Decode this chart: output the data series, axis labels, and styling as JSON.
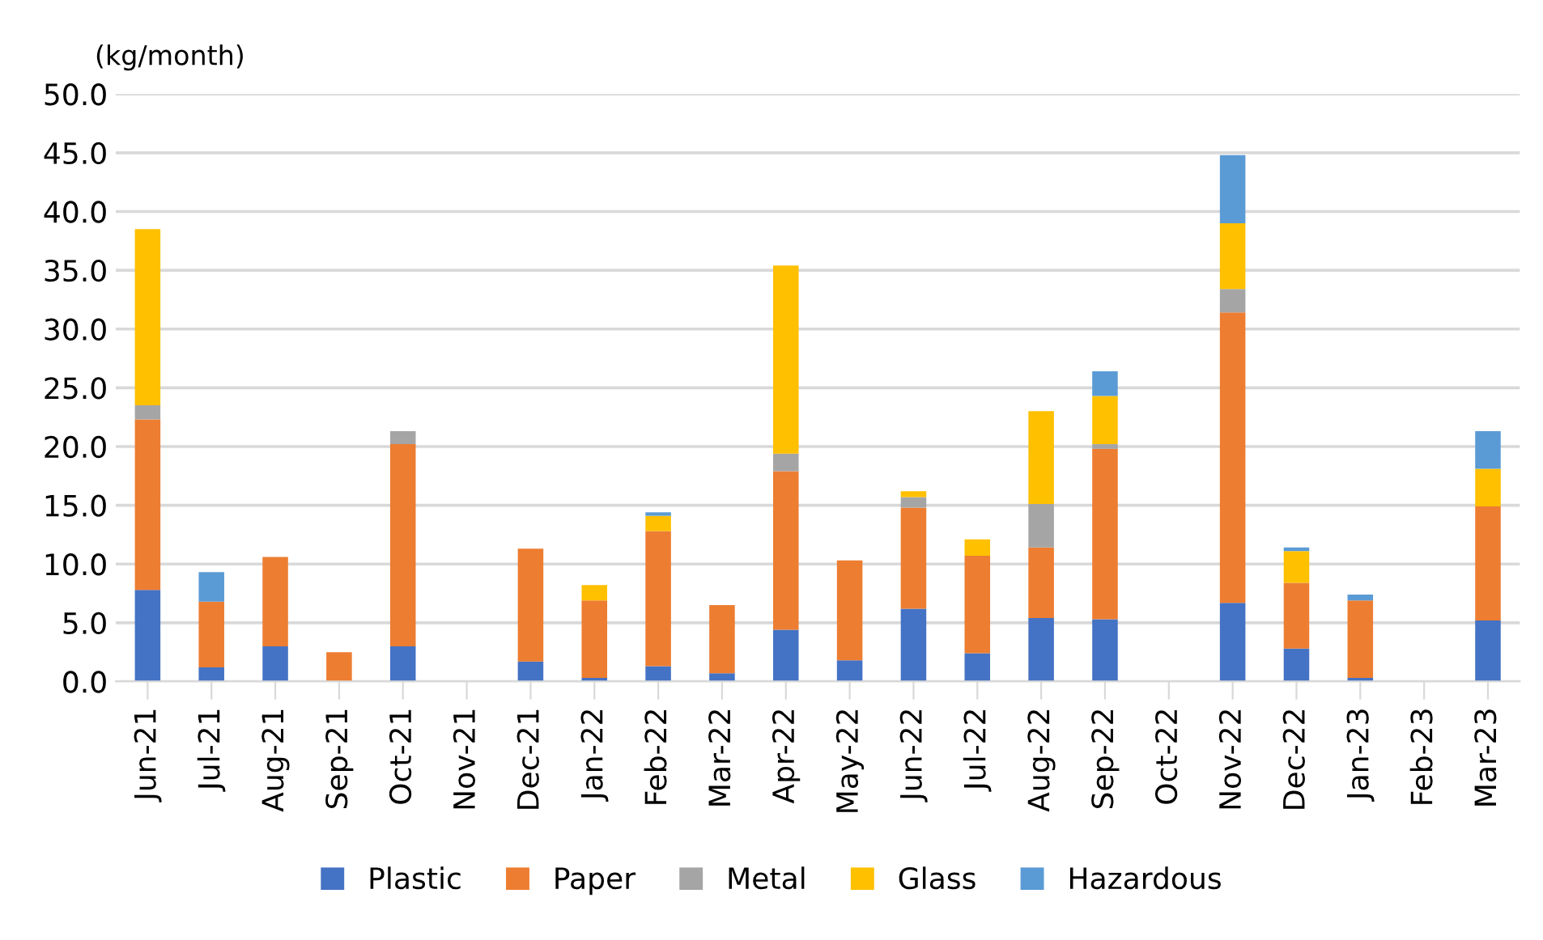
{
  "chart_data": {
    "type": "bar",
    "stacked": true,
    "ylabel": "(kg/month)",
    "categories": [
      "Jun-21",
      "Jul-21",
      "Aug-21",
      "Sep-21",
      "Oct-21",
      "Nov-21",
      "Dec-21",
      "Jan-22",
      "Feb-22",
      "Mar-22",
      "Apr-22",
      "May-22",
      "Jun-22",
      "Jul-22",
      "Aug-22",
      "Sep-22",
      "Oct-22",
      "Nov-22",
      "Dec-22",
      "Jan-23",
      "Feb-23",
      "Mar-23"
    ],
    "series": [
      {
        "name": "Plastic",
        "color": "#4472c4",
        "values": [
          7.8,
          1.2,
          3.0,
          0,
          3.0,
          0,
          1.7,
          0.3,
          1.3,
          0.7,
          4.4,
          1.8,
          6.2,
          2.4,
          5.4,
          5.3,
          0,
          6.7,
          2.8,
          0.3,
          0,
          5.2
        ]
      },
      {
        "name": "Paper",
        "color": "#ed7d31",
        "values": [
          14.5,
          5.6,
          7.6,
          2.5,
          17.2,
          0,
          9.6,
          6.6,
          11.5,
          5.8,
          13.5,
          8.5,
          8.6,
          8.3,
          6.0,
          14.5,
          0,
          24.7,
          5.6,
          6.6,
          0,
          9.7
        ]
      },
      {
        "name": "Metal",
        "color": "#a5a5a5",
        "values": [
          1.2,
          0,
          0,
          0,
          1.1,
          0,
          0,
          0,
          0,
          0,
          1.5,
          0,
          0.9,
          0,
          3.7,
          0.4,
          0,
          2.0,
          0,
          0,
          0,
          null
        ]
      },
      {
        "name": "Glass",
        "color": "#ffc000",
        "values": [
          15.0,
          0,
          0,
          0,
          0,
          0,
          0,
          1.3,
          1.3,
          0,
          16.0,
          0,
          0.5,
          1.4,
          7.9,
          4.1,
          0,
          5.6,
          2.7,
          0,
          0,
          3.2
        ]
      },
      {
        "name": "Hazardous",
        "color": "#5b9bd5",
        "values": [
          0,
          2.5,
          0,
          0,
          0,
          0,
          0,
          0,
          0.3,
          0,
          0,
          0,
          0,
          0,
          0,
          2.1,
          0,
          5.8,
          0.3,
          0.5,
          0,
          3.2
        ]
      }
    ],
    "ylim": [
      0,
      50
    ],
    "yticks": [
      {
        "value": 0,
        "label": "0.0"
      },
      {
        "value": 5,
        "label": "5.0"
      },
      {
        "value": 10,
        "label": "10.0"
      },
      {
        "value": 15,
        "label": "15.0"
      },
      {
        "value": 20,
        "label": "20.0"
      },
      {
        "value": 25,
        "label": "25.0"
      },
      {
        "value": 30,
        "label": "30.0"
      },
      {
        "value": 35,
        "label": "35.0"
      },
      {
        "value": 40,
        "label": "40.0"
      },
      {
        "value": 45,
        "label": "45.0"
      },
      {
        "value": 50,
        "label": "50.0"
      }
    ],
    "grid": "y",
    "legend": "bottom"
  }
}
